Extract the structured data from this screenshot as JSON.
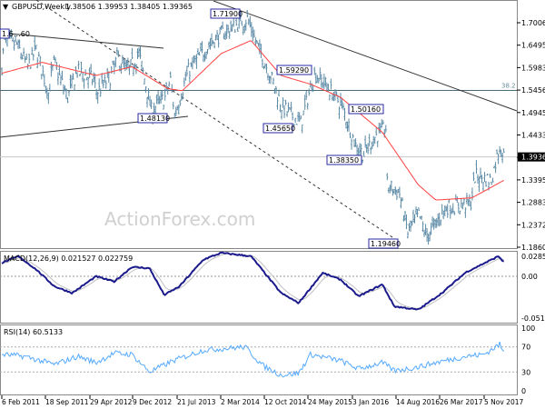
{
  "header": {
    "symbol": "GBPUSD,Weekly",
    "ohlc": "1.38506 1.39953 1.38405 1.39365"
  },
  "watermark": "ActionForex.com",
  "colors": {
    "bars": "#5b8aa6",
    "ma": "#ff4040",
    "macd": "#1a1a8c",
    "macd_signal": "#c0c0c0",
    "rsi": "#55aaff",
    "label_box": "#2a2aa0",
    "trendline": "#333333"
  },
  "chart_data": [
    {
      "type": "ohlc",
      "title": "GBPUSD,Weekly",
      "y_ticks": [
        "1.70065",
        "1.64950",
        "1.59835",
        "1.54565",
        "1.49450",
        "1.44335",
        "1.39365",
        "1.33950",
        "1.28835",
        "1.23720",
        "1.18605"
      ],
      "ylim": [
        1.18605,
        1.70065
      ],
      "current_price": "1.39365",
      "fib_level": {
        "label": "38.2",
        "value": 1.54565
      },
      "x_ticks": [
        "6 Feb 2011",
        "18 Sep 2011",
        "29 Apr 2012",
        "9 Dec 2012",
        "21 Jul 2013",
        "2 Mar 2014",
        "12 Oct 2014",
        "24 May 2015",
        "3 Jan 2016",
        "14 Aug 2016",
        "26 Mar 2017",
        "5 Nov 2017"
      ],
      "price_labels": [
        "1.6…60",
        "1.71900",
        "1.48130",
        "1.59290",
        "1.45650",
        "1.50160",
        "1.38350",
        "1.19460"
      ],
      "close_path": [
        [
          "2011-02-06",
          1.6
        ],
        [
          "2011-02-20",
          1.66
        ],
        [
          "2011-04-24",
          1.65
        ],
        [
          "2011-06-19",
          1.6
        ],
        [
          "2011-07-31",
          1.64
        ],
        [
          "2011-10-02",
          1.54
        ],
        [
          "2011-10-30",
          1.61
        ],
        [
          "2012-01-08",
          1.53
        ],
        [
          "2012-02-26",
          1.59
        ],
        [
          "2012-05-20",
          1.57
        ],
        [
          "2012-06-03",
          1.54
        ],
        [
          "2012-08-19",
          1.58
        ],
        [
          "2012-09-16",
          1.62
        ],
        [
          "2012-11-11",
          1.59
        ],
        [
          "2013-01-06",
          1.63
        ],
        [
          "2013-03-10",
          1.5
        ],
        [
          "2013-05-19",
          1.53
        ],
        [
          "2013-06-16",
          1.57
        ],
        [
          "2013-07-07",
          1.49
        ],
        [
          "2013-09-15",
          1.59
        ],
        [
          "2013-12-29",
          1.65
        ],
        [
          "2014-02-16",
          1.67
        ],
        [
          "2014-07-13",
          1.71
        ],
        [
          "2014-08-31",
          1.65
        ],
        [
          "2014-11-09",
          1.58
        ],
        [
          "2015-01-04",
          1.51
        ],
        [
          "2015-04-12",
          1.47
        ],
        [
          "2015-06-21",
          1.585
        ],
        [
          "2015-08-16",
          1.56
        ],
        [
          "2015-11-08",
          1.51
        ],
        [
          "2016-01-17",
          1.42
        ],
        [
          "2016-02-28",
          1.4
        ],
        [
          "2016-04-24",
          1.44
        ],
        [
          "2016-06-19",
          1.46
        ],
        [
          "2016-06-26",
          1.33
        ],
        [
          "2016-08-28",
          1.31
        ],
        [
          "2016-10-09",
          1.22
        ],
        [
          "2016-12-04",
          1.26
        ],
        [
          "2017-01-15",
          1.21
        ],
        [
          "2017-04-23",
          1.28
        ],
        [
          "2017-06-11",
          1.28
        ],
        [
          "2017-08-27",
          1.29
        ],
        [
          "2017-09-17",
          1.35
        ],
        [
          "2017-12-10",
          1.34
        ],
        [
          "2018-01-21",
          1.42
        ],
        [
          "2018-02-11",
          1.39365
        ]
      ],
      "ma_path": [
        [
          "2011-02-06",
          1.585
        ],
        [
          "2011-09-01",
          1.61
        ],
        [
          "2012-06-01",
          1.58
        ],
        [
          "2012-12-01",
          1.6
        ],
        [
          "2013-06-01",
          1.55
        ],
        [
          "2013-08-15",
          1.545
        ],
        [
          "2014-03-01",
          1.63
        ],
        [
          "2014-08-01",
          1.66
        ],
        [
          "2015-01-01",
          1.58
        ],
        [
          "2015-06-01",
          1.56
        ],
        [
          "2015-11-01",
          1.53
        ],
        [
          "2016-06-01",
          1.45
        ],
        [
          "2016-12-01",
          1.33
        ],
        [
          "2017-03-01",
          1.295
        ],
        [
          "2017-09-01",
          1.3
        ],
        [
          "2018-02-11",
          1.34
        ]
      ]
    },
    {
      "type": "line",
      "title": "MACD(12,26,9) 0.021527 0.022759",
      "y_ticks": [
        "0.02855",
        "0.00",
        "-0.051245"
      ],
      "ylim": [
        -0.051245,
        0.02855
      ],
      "macd_path": [
        [
          "2011-02-06",
          0.02
        ],
        [
          "2011-05-01",
          0.03
        ],
        [
          "2011-08-01",
          0.01
        ],
        [
          "2011-11-01",
          -0.015
        ],
        [
          "2012-02-01",
          -0.025
        ],
        [
          "2012-06-01",
          0.0
        ],
        [
          "2012-09-01",
          -0.008
        ],
        [
          "2012-12-01",
          0.014
        ],
        [
          "2013-03-01",
          0.012
        ],
        [
          "2013-05-15",
          -0.028
        ],
        [
          "2013-08-01",
          -0.015
        ],
        [
          "2013-12-01",
          0.025
        ],
        [
          "2014-03-01",
          0.035
        ],
        [
          "2014-08-01",
          0.03
        ],
        [
          "2015-01-01",
          -0.025
        ],
        [
          "2015-04-01",
          -0.04
        ],
        [
          "2015-08-01",
          0.005
        ],
        [
          "2015-11-01",
          -0.005
        ],
        [
          "2016-02-01",
          -0.03
        ],
        [
          "2016-06-01",
          -0.012
        ],
        [
          "2016-08-01",
          -0.045
        ],
        [
          "2016-12-01",
          -0.05
        ],
        [
          "2017-04-01",
          -0.025
        ],
        [
          "2017-08-01",
          0.006
        ],
        [
          "2018-01-15",
          0.03
        ],
        [
          "2018-02-11",
          0.0215
        ]
      ]
    },
    {
      "type": "line",
      "title": "RSI(14) 60.5133",
      "y_ticks": [
        "100",
        "70",
        "30",
        "0"
      ],
      "ylim": [
        0,
        100
      ],
      "levels": [
        70,
        30
      ],
      "rsi_path": [
        [
          "2011-02-06",
          58
        ],
        [
          "2011-06-01",
          55
        ],
        [
          "2011-11-01",
          42
        ],
        [
          "2012-03-01",
          55
        ],
        [
          "2012-06-01",
          45
        ],
        [
          "2012-09-01",
          60
        ],
        [
          "2012-12-01",
          58
        ],
        [
          "2013-03-01",
          30
        ],
        [
          "2013-07-01",
          48
        ],
        [
          "2013-12-01",
          65
        ],
        [
          "2014-03-01",
          67
        ],
        [
          "2014-07-01",
          70
        ],
        [
          "2014-10-01",
          40
        ],
        [
          "2015-01-01",
          25
        ],
        [
          "2015-04-01",
          28
        ],
        [
          "2015-06-01",
          58
        ],
        [
          "2015-11-01",
          48
        ],
        [
          "2016-02-01",
          35
        ],
        [
          "2016-06-01",
          45
        ],
        [
          "2016-08-01",
          32
        ],
        [
          "2016-12-01",
          38
        ],
        [
          "2017-03-01",
          45
        ],
        [
          "2017-08-01",
          55
        ],
        [
          "2017-11-01",
          58
        ],
        [
          "2018-01-21",
          74
        ],
        [
          "2018-02-11",
          60.5
        ]
      ]
    }
  ]
}
